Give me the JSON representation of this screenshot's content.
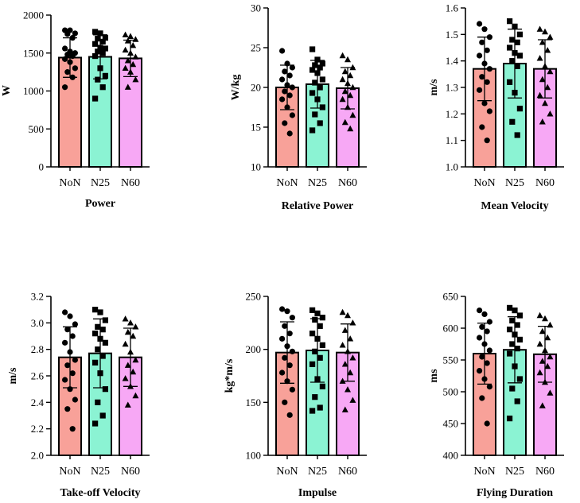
{
  "chart_data": [
    {
      "type": "bar",
      "title": "Power",
      "ylabel": "W",
      "ylim": [
        0,
        2000
      ],
      "yticks": [
        0,
        500,
        1000,
        1500,
        2000
      ],
      "categories": [
        "NoN",
        "N25",
        "N60"
      ],
      "colors": [
        "#F8A199",
        "#8BF3D3",
        "#F7A8F5"
      ],
      "markers": [
        "circle",
        "square",
        "triangle"
      ],
      "means": [
        1440,
        1450,
        1430
      ],
      "sd": [
        260,
        290,
        240
      ],
      "points": [
        [
          1800,
          1800,
          1760,
          1750,
          1700,
          1560,
          1520,
          1500,
          1480,
          1460,
          1420,
          1380,
          1300,
          1250,
          1180,
          1050
        ],
        [
          1780,
          1760,
          1700,
          1690,
          1650,
          1620,
          1570,
          1560,
          1520,
          1500,
          1460,
          1300,
          1200,
          1150,
          1050,
          900
        ],
        [
          1740,
          1720,
          1680,
          1660,
          1600,
          1540,
          1500,
          1450,
          1400,
          1350,
          1300,
          1250,
          1150,
          1050
        ]
      ]
    },
    {
      "type": "bar",
      "title": "Relative Power",
      "ylabel": "W/kg",
      "ylim": [
        10,
        30
      ],
      "yticks": [
        10,
        15,
        20,
        25,
        30
      ],
      "categories": [
        "NoN",
        "N25",
        "N60"
      ],
      "colors": [
        "#F8A199",
        "#8BF3D3",
        "#F7A8F5"
      ],
      "markers": [
        "circle",
        "square",
        "triangle"
      ],
      "means": [
        20.0,
        20.4,
        19.9
      ],
      "sd": [
        2.8,
        3.0,
        2.6
      ],
      "points": [
        [
          24.6,
          23.0,
          22.5,
          22.0,
          21.5,
          21.0,
          20.3,
          20.0,
          19.5,
          19.0,
          18.5,
          17.5,
          16.5,
          15.5,
          14.2
        ],
        [
          24.8,
          23.5,
          23.0,
          22.8,
          22.5,
          22.2,
          21.8,
          21.0,
          20.6,
          20.0,
          19.3,
          18.5,
          17.5,
          16.6,
          15.5,
          14.6
        ],
        [
          24.0,
          23.5,
          22.5,
          22.0,
          21.5,
          21.0,
          20.5,
          20.0,
          19.5,
          19.0,
          18.5,
          17.5,
          16.5,
          15.6,
          14.8
        ]
      ]
    },
    {
      "type": "bar",
      "title": "Mean Velocity",
      "ylabel": "m/s",
      "ylim": [
        1.0,
        1.6
      ],
      "yticks": [
        1.0,
        1.1,
        1.2,
        1.3,
        1.4,
        1.5,
        1.6
      ],
      "categories": [
        "NoN",
        "N25",
        "N60"
      ],
      "colors": [
        "#F8A199",
        "#8BF3D3",
        "#F7A8F5"
      ],
      "markers": [
        "circle",
        "square",
        "triangle"
      ],
      "means": [
        1.37,
        1.39,
        1.37
      ],
      "sd": [
        0.12,
        0.13,
        0.11
      ],
      "points": [
        [
          1.54,
          1.52,
          1.49,
          1.47,
          1.44,
          1.42,
          1.39,
          1.37,
          1.34,
          1.32,
          1.29,
          1.24,
          1.21,
          1.15,
          1.1
        ],
        [
          1.55,
          1.53,
          1.5,
          1.48,
          1.47,
          1.45,
          1.43,
          1.42,
          1.4,
          1.38,
          1.32,
          1.28,
          1.22,
          1.17,
          1.12
        ],
        [
          1.52,
          1.51,
          1.49,
          1.47,
          1.44,
          1.41,
          1.38,
          1.36,
          1.33,
          1.3,
          1.27,
          1.24,
          1.2,
          1.17
        ]
      ]
    },
    {
      "type": "bar",
      "title": "Take-off Velocity",
      "ylabel": "m/s",
      "ylim": [
        2.0,
        3.2
      ],
      "yticks": [
        2.0,
        2.2,
        2.4,
        2.6,
        2.8,
        3.0,
        3.2
      ],
      "categories": [
        "NoN",
        "N25",
        "N60"
      ],
      "colors": [
        "#F8A199",
        "#8BF3D3",
        "#F7A8F5"
      ],
      "markers": [
        "circle",
        "square",
        "triangle"
      ],
      "means": [
        2.74,
        2.77,
        2.74
      ],
      "sd": [
        0.23,
        0.26,
        0.22
      ],
      "points": [
        [
          3.08,
          3.05,
          2.99,
          2.95,
          2.9,
          2.85,
          2.78,
          2.72,
          2.68,
          2.62,
          2.57,
          2.5,
          2.42,
          2.35,
          2.2
        ],
        [
          3.1,
          3.08,
          3.02,
          2.97,
          2.95,
          2.92,
          2.88,
          2.85,
          2.8,
          2.75,
          2.7,
          2.62,
          2.5,
          2.4,
          2.3,
          2.24
        ],
        [
          3.03,
          3.0,
          2.97,
          2.93,
          2.9,
          2.84,
          2.78,
          2.72,
          2.68,
          2.63,
          2.58,
          2.52,
          2.45,
          2.38
        ]
      ]
    },
    {
      "type": "bar",
      "title": "Impulse",
      "ylabel": "kg*m/s",
      "ylim": [
        100,
        250
      ],
      "yticks": [
        100,
        150,
        200,
        250
      ],
      "categories": [
        "NoN",
        "N25",
        "N60"
      ],
      "colors": [
        "#F8A199",
        "#8BF3D3",
        "#F7A8F5"
      ],
      "markers": [
        "circle",
        "square",
        "triangle"
      ],
      "means": [
        197,
        199,
        197
      ],
      "sd": [
        29,
        30,
        27
      ],
      "points": [
        [
          238,
          236,
          230,
          222,
          215,
          210,
          203,
          198,
          192,
          185,
          178,
          170,
          162,
          150,
          138
        ],
        [
          237,
          234,
          230,
          228,
          222,
          215,
          210,
          204,
          198,
          192,
          186,
          172,
          165,
          155,
          145,
          142
        ],
        [
          235,
          232,
          225,
          218,
          210,
          204,
          198,
          192,
          186,
          178,
          170,
          162,
          152,
          143
        ]
      ]
    },
    {
      "type": "bar",
      "title": "Flying Duration",
      "ylabel": "ms",
      "ylim": [
        400,
        650
      ],
      "yticks": [
        400,
        450,
        500,
        550,
        600,
        650
      ],
      "categories": [
        "NoN",
        "N25",
        "N60"
      ],
      "colors": [
        "#F8A199",
        "#8BF3D3",
        "#F7A8F5"
      ],
      "markers": [
        "circle",
        "square",
        "triangle"
      ],
      "means": [
        560,
        566,
        559
      ],
      "sd": [
        48,
        52,
        44
      ],
      "points": [
        [
          628,
          622,
          610,
          602,
          595,
          585,
          575,
          565,
          555,
          545,
          533,
          520,
          508,
          490,
          450
        ],
        [
          632,
          628,
          620,
          612,
          605,
          598,
          590,
          582,
          575,
          568,
          560,
          540,
          520,
          505,
          485,
          458
        ],
        [
          620,
          615,
          605,
          595,
          585,
          575,
          565,
          555,
          548,
          540,
          530,
          515,
          498,
          478
        ]
      ]
    }
  ]
}
